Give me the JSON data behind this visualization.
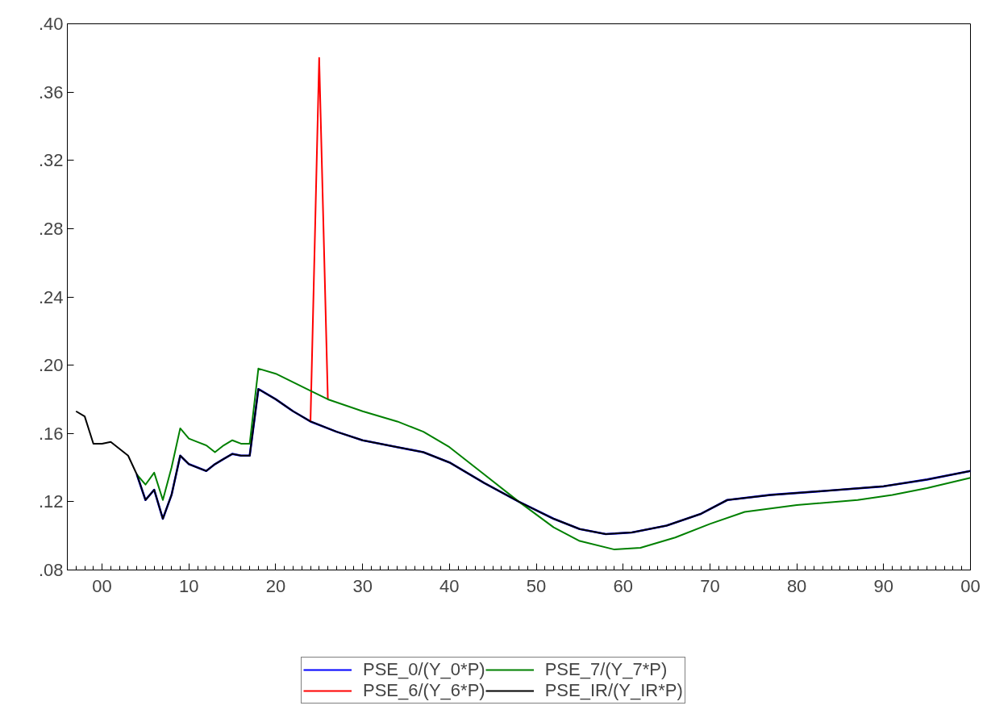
{
  "chart_data": {
    "type": "line",
    "xlim": [
      1996,
      2100
    ],
    "ylim": [
      0.08,
      0.4
    ],
    "xticks": [
      {
        "value": 2000,
        "label": "00"
      },
      {
        "value": 2010,
        "label": "10"
      },
      {
        "value": 2020,
        "label": "20"
      },
      {
        "value": 2030,
        "label": "30"
      },
      {
        "value": 2040,
        "label": "40"
      },
      {
        "value": 2050,
        "label": "50"
      },
      {
        "value": 2060,
        "label": "60"
      },
      {
        "value": 2070,
        "label": "70"
      },
      {
        "value": 2080,
        "label": "80"
      },
      {
        "value": 2090,
        "label": "90"
      },
      {
        "value": 2100,
        "label": "00"
      }
    ],
    "yticks": [
      {
        "value": 0.08,
        "label": ".08"
      },
      {
        "value": 0.12,
        "label": ".12"
      },
      {
        "value": 0.16,
        "label": ".16"
      },
      {
        "value": 0.2,
        "label": ".20"
      },
      {
        "value": 0.24,
        "label": ".24"
      },
      {
        "value": 0.28,
        "label": ".28"
      },
      {
        "value": 0.32,
        "label": ".32"
      },
      {
        "value": 0.36,
        "label": ".36"
      },
      {
        "value": 0.4,
        "label": ".40"
      }
    ],
    "grid": false,
    "legend": "bottom",
    "marker": "none",
    "line_style": "solid",
    "series": [
      {
        "name": "PSE_0/(Y_0*P)",
        "color": "#0000ff",
        "x": [
          2004,
          2005,
          2006,
          2007,
          2008,
          2009,
          2010,
          2011,
          2012,
          2013,
          2014,
          2015,
          2016,
          2017,
          2018,
          2020,
          2022,
          2024,
          2027,
          2030,
          2034,
          2037,
          2040,
          2044,
          2048,
          2052,
          2055,
          2058,
          2061,
          2065,
          2069,
          2072,
          2077,
          2085,
          2090,
          2095,
          2100
        ],
        "values": [
          0.136,
          0.121,
          0.127,
          0.11,
          0.124,
          0.147,
          0.142,
          0.14,
          0.138,
          0.142,
          0.145,
          0.148,
          0.147,
          0.147,
          0.186,
          0.18,
          0.173,
          0.167,
          0.161,
          0.156,
          0.152,
          0.149,
          0.143,
          0.131,
          0.12,
          0.11,
          0.104,
          0.101,
          0.102,
          0.106,
          0.113,
          0.121,
          0.124,
          0.127,
          0.129,
          0.133,
          0.138
        ]
      },
      {
        "name": "PSE_6/(Y_6*P)",
        "color": "#ff0000",
        "x": [
          2024,
          2025,
          2026
        ],
        "values": [
          0.167,
          0.38,
          0.18
        ]
      },
      {
        "name": "PSE_7/(Y_7*P)",
        "color": "#008000",
        "x": [
          2004,
          2005,
          2006,
          2007,
          2008,
          2009,
          2010,
          2011,
          2012,
          2013,
          2014,
          2015,
          2016,
          2017,
          2018,
          2020,
          2024,
          2026,
          2030,
          2034,
          2037,
          2040,
          2044,
          2048,
          2052,
          2055,
          2059,
          2062,
          2066,
          2070,
          2074,
          2080,
          2087,
          2091,
          2095,
          2100
        ],
        "values": [
          0.136,
          0.13,
          0.137,
          0.121,
          0.14,
          0.163,
          0.157,
          0.155,
          0.153,
          0.149,
          0.153,
          0.156,
          0.154,
          0.154,
          0.198,
          0.195,
          0.185,
          0.18,
          0.173,
          0.167,
          0.161,
          0.152,
          0.136,
          0.12,
          0.105,
          0.097,
          0.092,
          0.093,
          0.099,
          0.107,
          0.114,
          0.118,
          0.121,
          0.124,
          0.128,
          0.134
        ]
      },
      {
        "name": "PSE_IR/(Y_IR*P)",
        "color": "#000000",
        "x": [
          1997,
          1998,
          1999,
          2000,
          2001,
          2002,
          2003,
          2004,
          2005,
          2006,
          2007,
          2008,
          2009,
          2010,
          2011,
          2012,
          2013,
          2014,
          2015,
          2016,
          2017,
          2018,
          2020,
          2022,
          2024,
          2027,
          2030,
          2034,
          2037,
          2040,
          2044,
          2048,
          2052,
          2055,
          2058,
          2061,
          2065,
          2069,
          2072,
          2077,
          2085,
          2090,
          2095,
          2100
        ],
        "values": [
          0.173,
          0.17,
          0.154,
          0.154,
          0.155,
          0.151,
          0.147,
          0.136,
          0.121,
          0.127,
          0.11,
          0.124,
          0.147,
          0.142,
          0.14,
          0.138,
          0.142,
          0.145,
          0.148,
          0.147,
          0.147,
          0.186,
          0.18,
          0.173,
          0.167,
          0.161,
          0.156,
          0.152,
          0.149,
          0.143,
          0.131,
          0.12,
          0.11,
          0.104,
          0.101,
          0.102,
          0.106,
          0.113,
          0.121,
          0.124,
          0.127,
          0.129,
          0.133,
          0.138
        ]
      }
    ]
  }
}
